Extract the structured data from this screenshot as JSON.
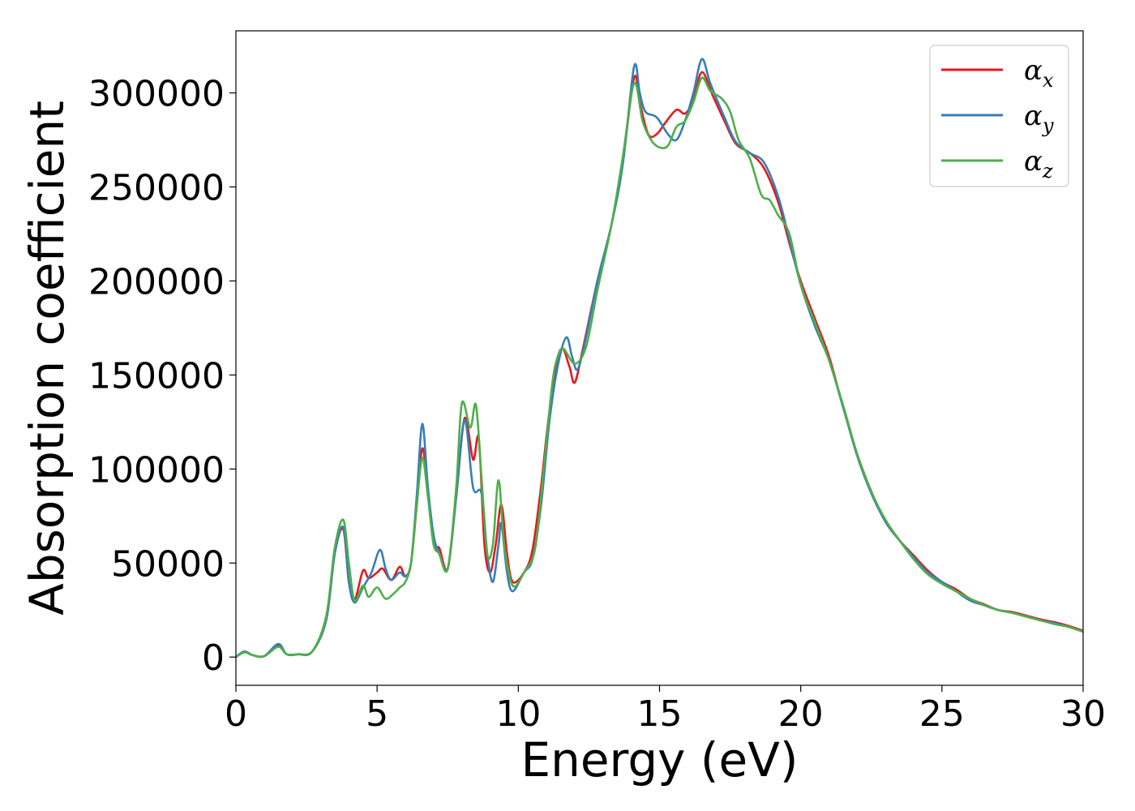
{
  "chart_data": {
    "type": "line",
    "xlabel": "Energy (eV)",
    "ylabel": "Absorption coefficient",
    "xlim": [
      0,
      30
    ],
    "ylim": [
      -15000,
      333000
    ],
    "xticks": [
      0,
      5,
      10,
      15,
      20,
      25,
      30
    ],
    "yticks": [
      0,
      50000,
      100000,
      150000,
      200000,
      250000,
      300000
    ],
    "legend_position": "top-right",
    "grid": false,
    "series": [
      {
        "name": "α_x",
        "symbol": "α",
        "subscript": "x",
        "color": "#e41a1c",
        "points": [
          [
            0,
            0
          ],
          [
            0.3,
            3000
          ],
          [
            0.6,
            1000
          ],
          [
            1,
            500
          ],
          [
            1.5,
            6000
          ],
          [
            1.8,
            1500
          ],
          [
            2.2,
            1500
          ],
          [
            2.7,
            3000
          ],
          [
            3.2,
            20000
          ],
          [
            3.5,
            55000
          ],
          [
            3.8,
            68000
          ],
          [
            4.0,
            40000
          ],
          [
            4.2,
            30000
          ],
          [
            4.5,
            46000
          ],
          [
            4.7,
            42000
          ],
          [
            5.0,
            45000
          ],
          [
            5.2,
            47000
          ],
          [
            5.5,
            41000
          ],
          [
            5.8,
            48000
          ],
          [
            6.0,
            43000
          ],
          [
            6.2,
            50000
          ],
          [
            6.4,
            80000
          ],
          [
            6.6,
            111000
          ],
          [
            6.8,
            88000
          ],
          [
            7.0,
            60000
          ],
          [
            7.2,
            58000
          ],
          [
            7.5,
            47000
          ],
          [
            7.8,
            85000
          ],
          [
            8.1,
            127000
          ],
          [
            8.4,
            105000
          ],
          [
            8.6,
            116000
          ],
          [
            8.8,
            60000
          ],
          [
            9.0,
            45000
          ],
          [
            9.2,
            60000
          ],
          [
            9.4,
            81000
          ],
          [
            9.6,
            55000
          ],
          [
            9.8,
            40000
          ],
          [
            10.2,
            45000
          ],
          [
            10.5,
            57000
          ],
          [
            10.8,
            90000
          ],
          [
            11.1,
            130000
          ],
          [
            11.5,
            163000
          ],
          [
            11.8,
            155000
          ],
          [
            12.0,
            146000
          ],
          [
            12.3,
            165000
          ],
          [
            12.8,
            200000
          ],
          [
            13.3,
            230000
          ],
          [
            13.7,
            264000
          ],
          [
            14.1,
            308000
          ],
          [
            14.3,
            295000
          ],
          [
            14.6,
            278000
          ],
          [
            14.9,
            278000
          ],
          [
            15.2,
            284000
          ],
          [
            15.6,
            291000
          ],
          [
            15.9,
            289000
          ],
          [
            16.2,
            296000
          ],
          [
            16.5,
            311000
          ],
          [
            16.9,
            298000
          ],
          [
            17.3,
            285000
          ],
          [
            17.7,
            273000
          ],
          [
            18.2,
            268000
          ],
          [
            18.7,
            260000
          ],
          [
            19.2,
            242000
          ],
          [
            19.6,
            220000
          ],
          [
            20.0,
            200000
          ],
          [
            20.5,
            180000
          ],
          [
            21.0,
            160000
          ],
          [
            21.5,
            133000
          ],
          [
            22.0,
            108000
          ],
          [
            22.5,
            88000
          ],
          [
            23.0,
            72000
          ],
          [
            23.5,
            62000
          ],
          [
            24.0,
            54000
          ],
          [
            24.5,
            46000
          ],
          [
            25.0,
            40000
          ],
          [
            25.5,
            36000
          ],
          [
            26.0,
            31000
          ],
          [
            26.5,
            28000
          ],
          [
            27.0,
            25000
          ],
          [
            27.5,
            24000
          ],
          [
            28.0,
            22000
          ],
          [
            28.5,
            20000
          ],
          [
            29.0,
            18500
          ],
          [
            29.5,
            16500
          ],
          [
            30.0,
            14000
          ]
        ]
      },
      {
        "name": "α_y",
        "symbol": "α",
        "subscript": "y",
        "color": "#377eb8",
        "points": [
          [
            0,
            0
          ],
          [
            0.3,
            3000
          ],
          [
            0.6,
            1000
          ],
          [
            1,
            500
          ],
          [
            1.5,
            7000
          ],
          [
            1.8,
            1500
          ],
          [
            2.2,
            1500
          ],
          [
            2.7,
            3000
          ],
          [
            3.2,
            20000
          ],
          [
            3.5,
            55000
          ],
          [
            3.8,
            69000
          ],
          [
            4.0,
            40000
          ],
          [
            4.2,
            29000
          ],
          [
            4.5,
            37000
          ],
          [
            4.8,
            45000
          ],
          [
            5.1,
            57000
          ],
          [
            5.3,
            47000
          ],
          [
            5.5,
            41000
          ],
          [
            5.8,
            45000
          ],
          [
            6.0,
            43000
          ],
          [
            6.2,
            50000
          ],
          [
            6.4,
            85000
          ],
          [
            6.6,
            124000
          ],
          [
            6.8,
            90000
          ],
          [
            7.0,
            65000
          ],
          [
            7.2,
            55000
          ],
          [
            7.5,
            47000
          ],
          [
            7.8,
            85000
          ],
          [
            8.1,
            126000
          ],
          [
            8.4,
            90000
          ],
          [
            8.7,
            87000
          ],
          [
            8.9,
            55000
          ],
          [
            9.1,
            40000
          ],
          [
            9.3,
            60000
          ],
          [
            9.4,
            71000
          ],
          [
            9.6,
            45000
          ],
          [
            9.8,
            35000
          ],
          [
            10.2,
            45000
          ],
          [
            10.5,
            52000
          ],
          [
            10.8,
            80000
          ],
          [
            11.1,
            125000
          ],
          [
            11.4,
            155000
          ],
          [
            11.7,
            170000
          ],
          [
            11.9,
            160000
          ],
          [
            12.1,
            153000
          ],
          [
            12.4,
            170000
          ],
          [
            12.8,
            200000
          ],
          [
            13.3,
            230000
          ],
          [
            13.7,
            262000
          ],
          [
            14.1,
            314000
          ],
          [
            14.3,
            300000
          ],
          [
            14.5,
            290000
          ],
          [
            14.9,
            287000
          ],
          [
            15.3,
            278000
          ],
          [
            15.6,
            275000
          ],
          [
            15.9,
            285000
          ],
          [
            16.2,
            300000
          ],
          [
            16.5,
            318000
          ],
          [
            16.8,
            305000
          ],
          [
            17.3,
            287000
          ],
          [
            17.7,
            274000
          ],
          [
            18.2,
            268000
          ],
          [
            18.7,
            263000
          ],
          [
            19.2,
            245000
          ],
          [
            19.6,
            222000
          ],
          [
            20.0,
            198000
          ],
          [
            20.5,
            176000
          ],
          [
            21.0,
            158000
          ],
          [
            21.5,
            133000
          ],
          [
            22.0,
            107000
          ],
          [
            22.5,
            87000
          ],
          [
            23.0,
            72000
          ],
          [
            23.5,
            62000
          ],
          [
            24.0,
            53000
          ],
          [
            24.5,
            45000
          ],
          [
            25.0,
            40000
          ],
          [
            25.5,
            35000
          ],
          [
            26.0,
            30000
          ],
          [
            26.5,
            27500
          ],
          [
            27.0,
            25000
          ],
          [
            27.5,
            23500
          ],
          [
            28.0,
            21500
          ],
          [
            28.5,
            19500
          ],
          [
            29.0,
            18000
          ],
          [
            29.5,
            16000
          ],
          [
            30.0,
            13500
          ]
        ]
      },
      {
        "name": "α_z",
        "symbol": "α",
        "subscript": "z",
        "color": "#4daf4a",
        "points": [
          [
            0,
            0
          ],
          [
            0.3,
            2500
          ],
          [
            0.6,
            1000
          ],
          [
            1,
            500
          ],
          [
            1.5,
            5500
          ],
          [
            1.8,
            1500
          ],
          [
            2.2,
            1500
          ],
          [
            2.7,
            3000
          ],
          [
            3.2,
            22000
          ],
          [
            3.5,
            58000
          ],
          [
            3.8,
            73000
          ],
          [
            4.0,
            50000
          ],
          [
            4.2,
            30000
          ],
          [
            4.5,
            38000
          ],
          [
            4.7,
            32000
          ],
          [
            5.0,
            37000
          ],
          [
            5.3,
            31000
          ],
          [
            5.6,
            34000
          ],
          [
            5.8,
            37000
          ],
          [
            6.0,
            40000
          ],
          [
            6.2,
            50000
          ],
          [
            6.4,
            80000
          ],
          [
            6.6,
            106000
          ],
          [
            6.8,
            85000
          ],
          [
            7.0,
            60000
          ],
          [
            7.2,
            55000
          ],
          [
            7.5,
            47000
          ],
          [
            7.8,
            90000
          ],
          [
            8.0,
            135000
          ],
          [
            8.3,
            122000
          ],
          [
            8.5,
            134000
          ],
          [
            8.7,
            95000
          ],
          [
            8.9,
            55000
          ],
          [
            9.1,
            60000
          ],
          [
            9.3,
            94000
          ],
          [
            9.5,
            60000
          ],
          [
            9.8,
            38000
          ],
          [
            10.2,
            45000
          ],
          [
            10.6,
            58000
          ],
          [
            10.9,
            100000
          ],
          [
            11.2,
            145000
          ],
          [
            11.4,
            160000
          ],
          [
            11.6,
            164000
          ],
          [
            12.0,
            156000
          ],
          [
            12.4,
            165000
          ],
          [
            12.8,
            195000
          ],
          [
            13.3,
            230000
          ],
          [
            13.7,
            266000
          ],
          [
            14.1,
            305000
          ],
          [
            14.4,
            285000
          ],
          [
            14.7,
            275000
          ],
          [
            15.0,
            271000
          ],
          [
            15.3,
            272000
          ],
          [
            15.6,
            282000
          ],
          [
            15.9,
            285000
          ],
          [
            16.2,
            295000
          ],
          [
            16.5,
            308000
          ],
          [
            16.8,
            301000
          ],
          [
            17.2,
            297000
          ],
          [
            17.5,
            290000
          ],
          [
            17.8,
            275000
          ],
          [
            18.2,
            265000
          ],
          [
            18.6,
            246000
          ],
          [
            18.9,
            243000
          ],
          [
            19.2,
            235000
          ],
          [
            19.6,
            225000
          ],
          [
            20.0,
            198000
          ],
          [
            20.5,
            178000
          ],
          [
            21.0,
            158000
          ],
          [
            21.5,
            134000
          ],
          [
            22.0,
            108000
          ],
          [
            22.5,
            88000
          ],
          [
            23.0,
            73000
          ],
          [
            23.5,
            62000
          ],
          [
            24.0,
            52000
          ],
          [
            24.5,
            44000
          ],
          [
            25.0,
            39000
          ],
          [
            25.5,
            35000
          ],
          [
            26.0,
            31000
          ],
          [
            26.5,
            27500
          ],
          [
            27.0,
            25000
          ],
          [
            27.5,
            23500
          ],
          [
            28.0,
            21500
          ],
          [
            28.5,
            19500
          ],
          [
            29.0,
            17500
          ],
          [
            29.5,
            16000
          ],
          [
            30.0,
            13500
          ]
        ]
      }
    ]
  }
}
